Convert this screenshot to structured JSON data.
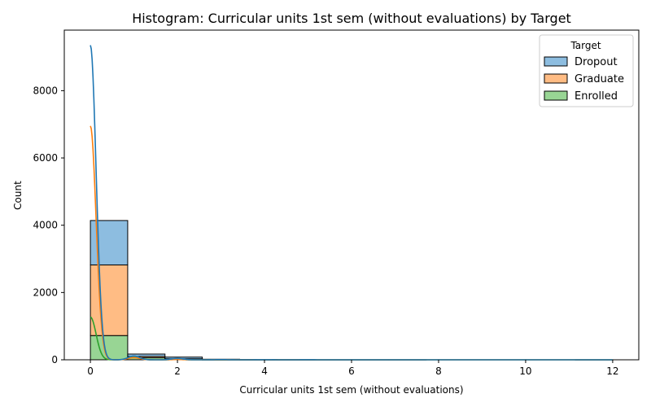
{
  "chart_data": {
    "type": "histogram",
    "title": "Histogram: Curricular units 1st sem (without evaluations) by Target",
    "xlabel": "Curricular units 1st sem (without evaluations)",
    "ylabel": "Count",
    "xlim": [
      -0.6,
      12.6
    ],
    "ylim": [
      0,
      9800
    ],
    "xticks": [
      0,
      2,
      4,
      6,
      8,
      10,
      12
    ],
    "yticks": [
      0,
      2000,
      4000,
      6000,
      8000
    ],
    "bin_edges": [
      0,
      0.857,
      1.714,
      2.571,
      3.429,
      4.286,
      5.143,
      6.0,
      6.857,
      7.714,
      8.571,
      9.429,
      10.286,
      11.143,
      12.0
    ],
    "stacked": true,
    "legend": {
      "title": "Target",
      "position": "top-right"
    },
    "series": [
      {
        "name": "Enrolled",
        "color": "#2ca02c",
        "fill": "#98d594",
        "counts": [
          720,
          60,
          20,
          4,
          2,
          1,
          0,
          0,
          0,
          0,
          0,
          0,
          0,
          0
        ],
        "kde_peak": 1270
      },
      {
        "name": "Graduate",
        "color": "#ff7f0e",
        "fill": "#ffbc84",
        "counts": [
          2100,
          40,
          10,
          3,
          2,
          1,
          0,
          0,
          0,
          0,
          0,
          0,
          0,
          0
        ],
        "kde_peak": 6950
      },
      {
        "name": "Dropout",
        "color": "#1f77b4",
        "fill": "#8dbde0",
        "counts": [
          1320,
          70,
          50,
          10,
          5,
          3,
          1,
          1,
          1,
          0,
          0,
          0,
          0,
          1
        ],
        "kde_peak": 9350
      }
    ],
    "legend_order": [
      "Dropout",
      "Graduate",
      "Enrolled"
    ]
  }
}
